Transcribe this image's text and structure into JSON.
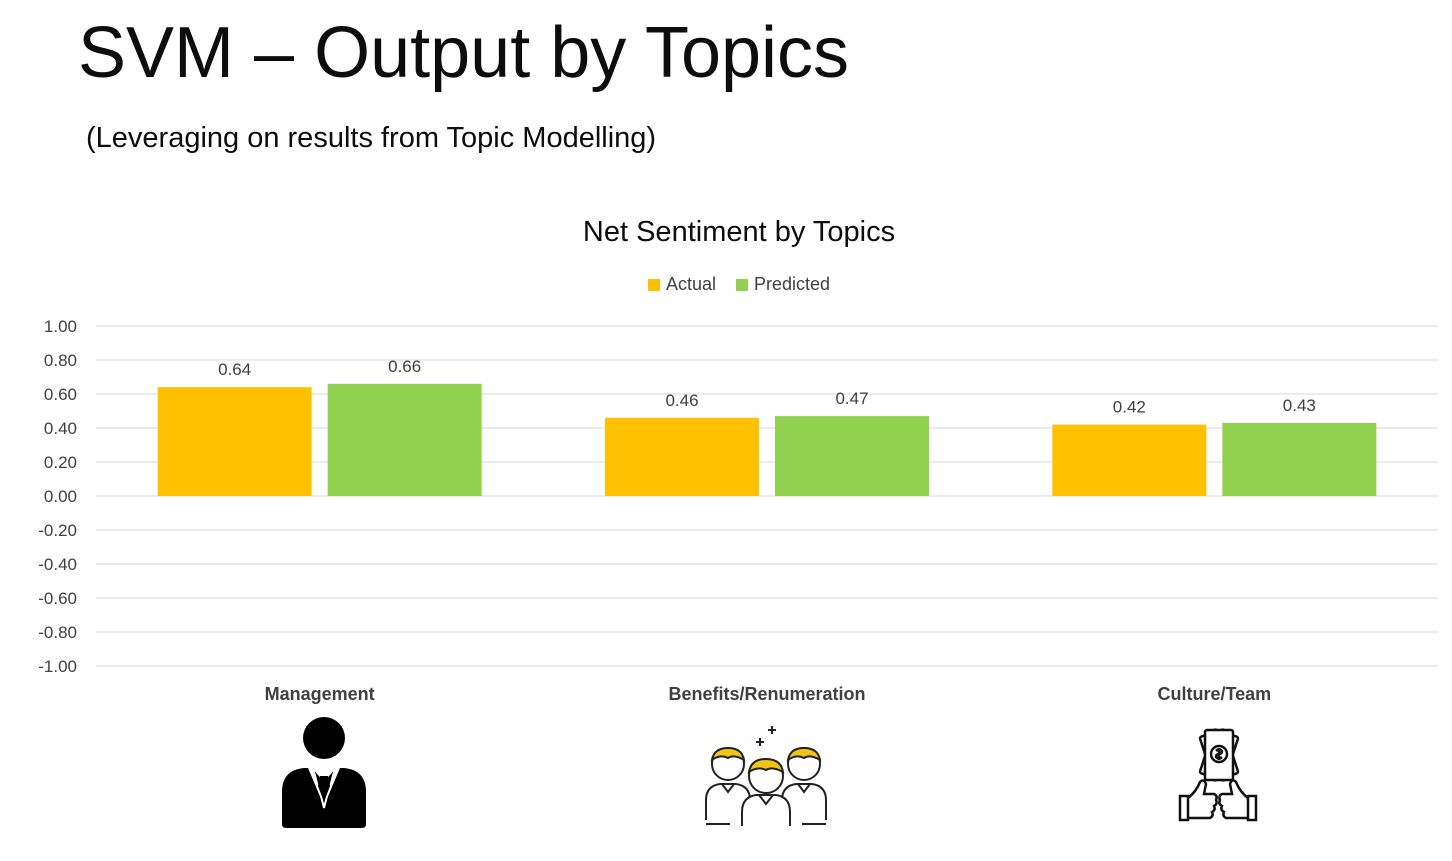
{
  "slide": {
    "title": "SVM – Output by Topics",
    "subtitle": "(Leveraging on results from Topic Modelling)"
  },
  "colors": {
    "actual": "#FFC000",
    "predicted": "#92D050",
    "grid": "#d9d9d9",
    "tick_text": "#404040",
    "icon_accent": "#F0C419"
  },
  "chart_data": {
    "type": "bar",
    "title": "Net Sentiment by Topics",
    "categories": [
      "Management",
      "Benefits/Renumeration",
      "Culture/Team"
    ],
    "series": [
      {
        "name": "Actual",
        "values": [
          0.64,
          0.46,
          0.42
        ],
        "labels": [
          "0.64",
          "0.46",
          "0.42"
        ]
      },
      {
        "name": "Predicted",
        "values": [
          0.66,
          0.47,
          0.43
        ],
        "labels": [
          "0.66",
          "0.47",
          "0.43"
        ]
      }
    ],
    "ylim": [
      -1.0,
      1.0
    ],
    "yticks": [
      "1.00",
      "0.80",
      "0.60",
      "0.40",
      "0.20",
      "0.00",
      "-0.20",
      "-0.40",
      "-0.60",
      "-0.80",
      "-1.00"
    ],
    "ytick_values": [
      1.0,
      0.8,
      0.6,
      0.4,
      0.2,
      0.0,
      -0.2,
      -0.4,
      -0.6,
      -0.8,
      -1.0
    ],
    "grid": true,
    "legend_position": "top-center",
    "xlabel": "",
    "ylabel": ""
  },
  "icons": [
    "businessman-icon",
    "employees-group-icon",
    "money-thumbs-up-icon"
  ]
}
